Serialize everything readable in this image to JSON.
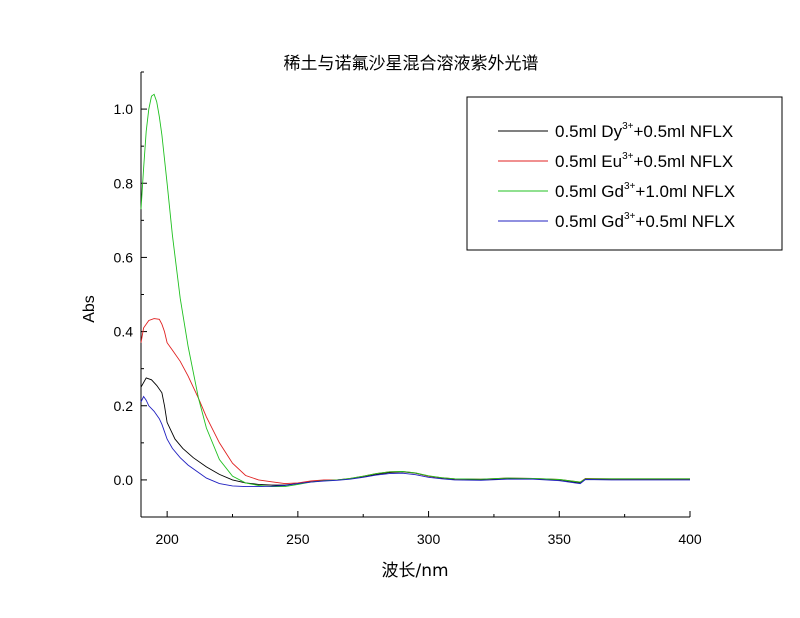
{
  "chart_data": {
    "type": "line",
    "title": "稀土与诺氟沙星混合溶液紫外光谱",
    "xlabel": "波长/nm",
    "ylabel": "Abs",
    "xlim": [
      190,
      400
    ],
    "ylim": [
      -0.1,
      1.1
    ],
    "xticks": [
      200,
      250,
      300,
      350,
      400
    ],
    "yticks": [
      0.0,
      0.2,
      0.4,
      0.6,
      0.8,
      1.0
    ],
    "ytick_labels": [
      "0.0",
      "0.2",
      "0.4",
      "0.6",
      "0.8",
      "1.0"
    ],
    "legend_position": "top-right",
    "series": [
      {
        "name": "0.5ml Dy3++0.5ml NFLX",
        "legend_parts": [
          "0.5ml Dy",
          "3+",
          "+0.5ml NFLX"
        ],
        "color": "#000000",
        "x": [
          190,
          192,
          194,
          196,
          198,
          199,
          200,
          203,
          206,
          210,
          215,
          220,
          225,
          230,
          235,
          240,
          245,
          250,
          255,
          260,
          265,
          270,
          275,
          280,
          285,
          290,
          295,
          300,
          305,
          310,
          320,
          330,
          340,
          350,
          358,
          360,
          370,
          380,
          390,
          400
        ],
        "y": [
          0.25,
          0.275,
          0.27,
          0.255,
          0.235,
          0.2,
          0.155,
          0.11,
          0.085,
          0.06,
          0.035,
          0.015,
          0.0,
          -0.008,
          -0.012,
          -0.014,
          -0.014,
          -0.01,
          -0.005,
          -0.002,
          0.0,
          0.003,
          0.008,
          0.015,
          0.02,
          0.022,
          0.018,
          0.01,
          0.005,
          0.002,
          0.0,
          0.003,
          0.003,
          0.0,
          -0.008,
          0.003,
          0.002,
          0.002,
          0.002,
          0.002
        ]
      },
      {
        "name": "0.5ml Eu3++0.5ml NFLX",
        "legend_parts": [
          "0.5ml Eu",
          "3+",
          "+0.5ml NFLX"
        ],
        "color": "#e02020",
        "x": [
          190,
          191,
          193,
          195,
          197,
          198,
          199,
          200,
          202,
          205,
          208,
          212,
          215,
          220,
          225,
          230,
          235,
          240,
          245,
          250,
          255,
          260,
          265,
          270,
          275,
          280,
          285,
          290,
          295,
          300,
          305,
          310,
          320,
          330,
          340,
          350,
          358,
          360,
          370,
          380,
          390,
          400
        ],
        "y": [
          0.37,
          0.41,
          0.43,
          0.435,
          0.433,
          0.42,
          0.4,
          0.37,
          0.35,
          0.32,
          0.28,
          0.22,
          0.17,
          0.1,
          0.045,
          0.012,
          0.0,
          -0.005,
          -0.01,
          -0.008,
          -0.003,
          0.0,
          0.0,
          0.004,
          0.01,
          0.017,
          0.022,
          0.023,
          0.019,
          0.01,
          0.006,
          0.003,
          0.002,
          0.005,
          0.004,
          0.001,
          -0.006,
          0.004,
          0.003,
          0.003,
          0.003,
          0.003
        ]
      },
      {
        "name": "0.5ml Gd3++1.0ml NFLX",
        "legend_parts": [
          "0.5ml Gd",
          "3+",
          "+1.0ml NFLX"
        ],
        "color": "#20c020",
        "x": [
          190,
          191,
          192,
          193,
          194,
          195,
          196,
          197,
          198,
          200,
          202,
          205,
          208,
          212,
          215,
          220,
          225,
          230,
          235,
          240,
          245,
          250,
          255,
          260,
          265,
          270,
          275,
          280,
          285,
          290,
          295,
          300,
          305,
          310,
          320,
          330,
          340,
          350,
          358,
          360,
          370,
          380,
          390,
          400
        ],
        "y": [
          0.73,
          0.84,
          0.94,
          1.0,
          1.035,
          1.04,
          1.02,
          0.98,
          0.93,
          0.8,
          0.66,
          0.49,
          0.36,
          0.22,
          0.14,
          0.055,
          0.01,
          -0.008,
          -0.015,
          -0.018,
          -0.018,
          -0.012,
          -0.006,
          -0.002,
          0.0,
          0.004,
          0.01,
          0.017,
          0.022,
          0.023,
          0.019,
          0.011,
          0.006,
          0.003,
          0.002,
          0.005,
          0.004,
          0.001,
          -0.006,
          0.003,
          0.003,
          0.003,
          0.003,
          0.003
        ]
      },
      {
        "name": "0.5ml Gd3++0.5ml NFLX",
        "legend_parts": [
          "0.5ml Gd",
          "3+",
          "+0.5ml NFLX"
        ],
        "color": "#2020c0",
        "x": [
          190,
          191,
          192,
          193,
          195,
          196,
          197,
          198,
          199,
          200,
          202,
          205,
          208,
          212,
          215,
          220,
          225,
          230,
          235,
          240,
          245,
          250,
          255,
          260,
          265,
          270,
          275,
          280,
          285,
          290,
          295,
          300,
          305,
          310,
          320,
          330,
          340,
          350,
          358,
          360,
          370,
          380,
          390,
          400
        ],
        "y": [
          0.21,
          0.225,
          0.215,
          0.2,
          0.185,
          0.175,
          0.165,
          0.15,
          0.13,
          0.11,
          0.085,
          0.06,
          0.04,
          0.02,
          0.005,
          -0.01,
          -0.016,
          -0.018,
          -0.018,
          -0.017,
          -0.015,
          -0.01,
          -0.006,
          -0.003,
          -0.001,
          0.002,
          0.007,
          0.013,
          0.017,
          0.018,
          0.014,
          0.007,
          0.003,
          0.0,
          -0.001,
          0.002,
          0.002,
          -0.002,
          -0.01,
          0.001,
          0.0,
          0.0,
          0.0,
          0.0
        ]
      }
    ]
  }
}
